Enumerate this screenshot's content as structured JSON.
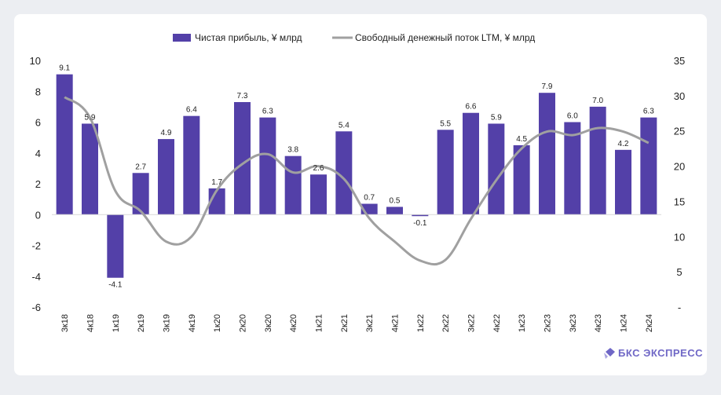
{
  "chart_data": {
    "type": "bar",
    "categories": [
      "3к18",
      "4к18",
      "1к19",
      "2к19",
      "3к19",
      "4к19",
      "1к20",
      "2к20",
      "3к20",
      "4к20",
      "1к21",
      "2к21",
      "3к21",
      "4к21",
      "1к22",
      "2к22",
      "3к22",
      "4к22",
      "1к23",
      "2к23",
      "3к23",
      "4к23",
      "1к24",
      "2к24"
    ],
    "series": [
      {
        "name": "Чистая прибыль, ¥ млрд",
        "type": "bar",
        "axis": "left",
        "color": "#5340a8",
        "values": [
          9.1,
          5.9,
          -4.1,
          2.7,
          4.9,
          6.4,
          1.7,
          7.3,
          6.3,
          3.8,
          2.6,
          5.4,
          0.7,
          0.5,
          -0.1,
          5.5,
          6.6,
          5.9,
          4.5,
          7.9,
          6.0,
          7.0,
          4.2,
          6.3
        ],
        "labels": [
          "9.1",
          "5.9",
          "-4.1",
          "2.7",
          "4.9",
          "6.4",
          "1.7",
          "7.3",
          "6.3",
          "3.8",
          "2.6",
          "5.4",
          "0.7",
          "0.5",
          "-0.1",
          "5.5",
          "6.6",
          "5.9",
          "4.5",
          "7.9",
          "6.0",
          "7.0",
          "4.2",
          "6.3"
        ]
      },
      {
        "name": "Свободный денежный поток LTM, ¥ млрд",
        "type": "line",
        "axis": "right",
        "color": "#a0a0a0",
        "values": [
          29.8,
          26.9,
          16.5,
          13.6,
          9.3,
          10.0,
          16.6,
          20.3,
          21.7,
          19.1,
          20.0,
          18.2,
          12.6,
          9.3,
          6.6,
          6.7,
          12.5,
          18.0,
          22.5,
          24.9,
          24.4,
          25.4,
          24.9,
          23.3
        ]
      }
    ],
    "y_left": {
      "min": -6,
      "max": 10,
      "ticks": [
        -6,
        -4,
        -2,
        0,
        2,
        4,
        6,
        8,
        10
      ],
      "tick_labels": [
        "-6",
        "-4",
        "-2",
        "0",
        "2",
        "4",
        "6",
        "8",
        "10"
      ]
    },
    "y_right": {
      "min": 0,
      "max": 35,
      "ticks": [
        0,
        5,
        10,
        15,
        20,
        25,
        30,
        35
      ],
      "tick_labels": [
        "-",
        "5",
        "10",
        "15",
        "20",
        "25",
        "30",
        "35"
      ]
    },
    "grid": false,
    "legend": "top-center"
  },
  "brand": {
    "name": "БКС ЭКСПРЕСС",
    "color": "#6f67c6"
  }
}
